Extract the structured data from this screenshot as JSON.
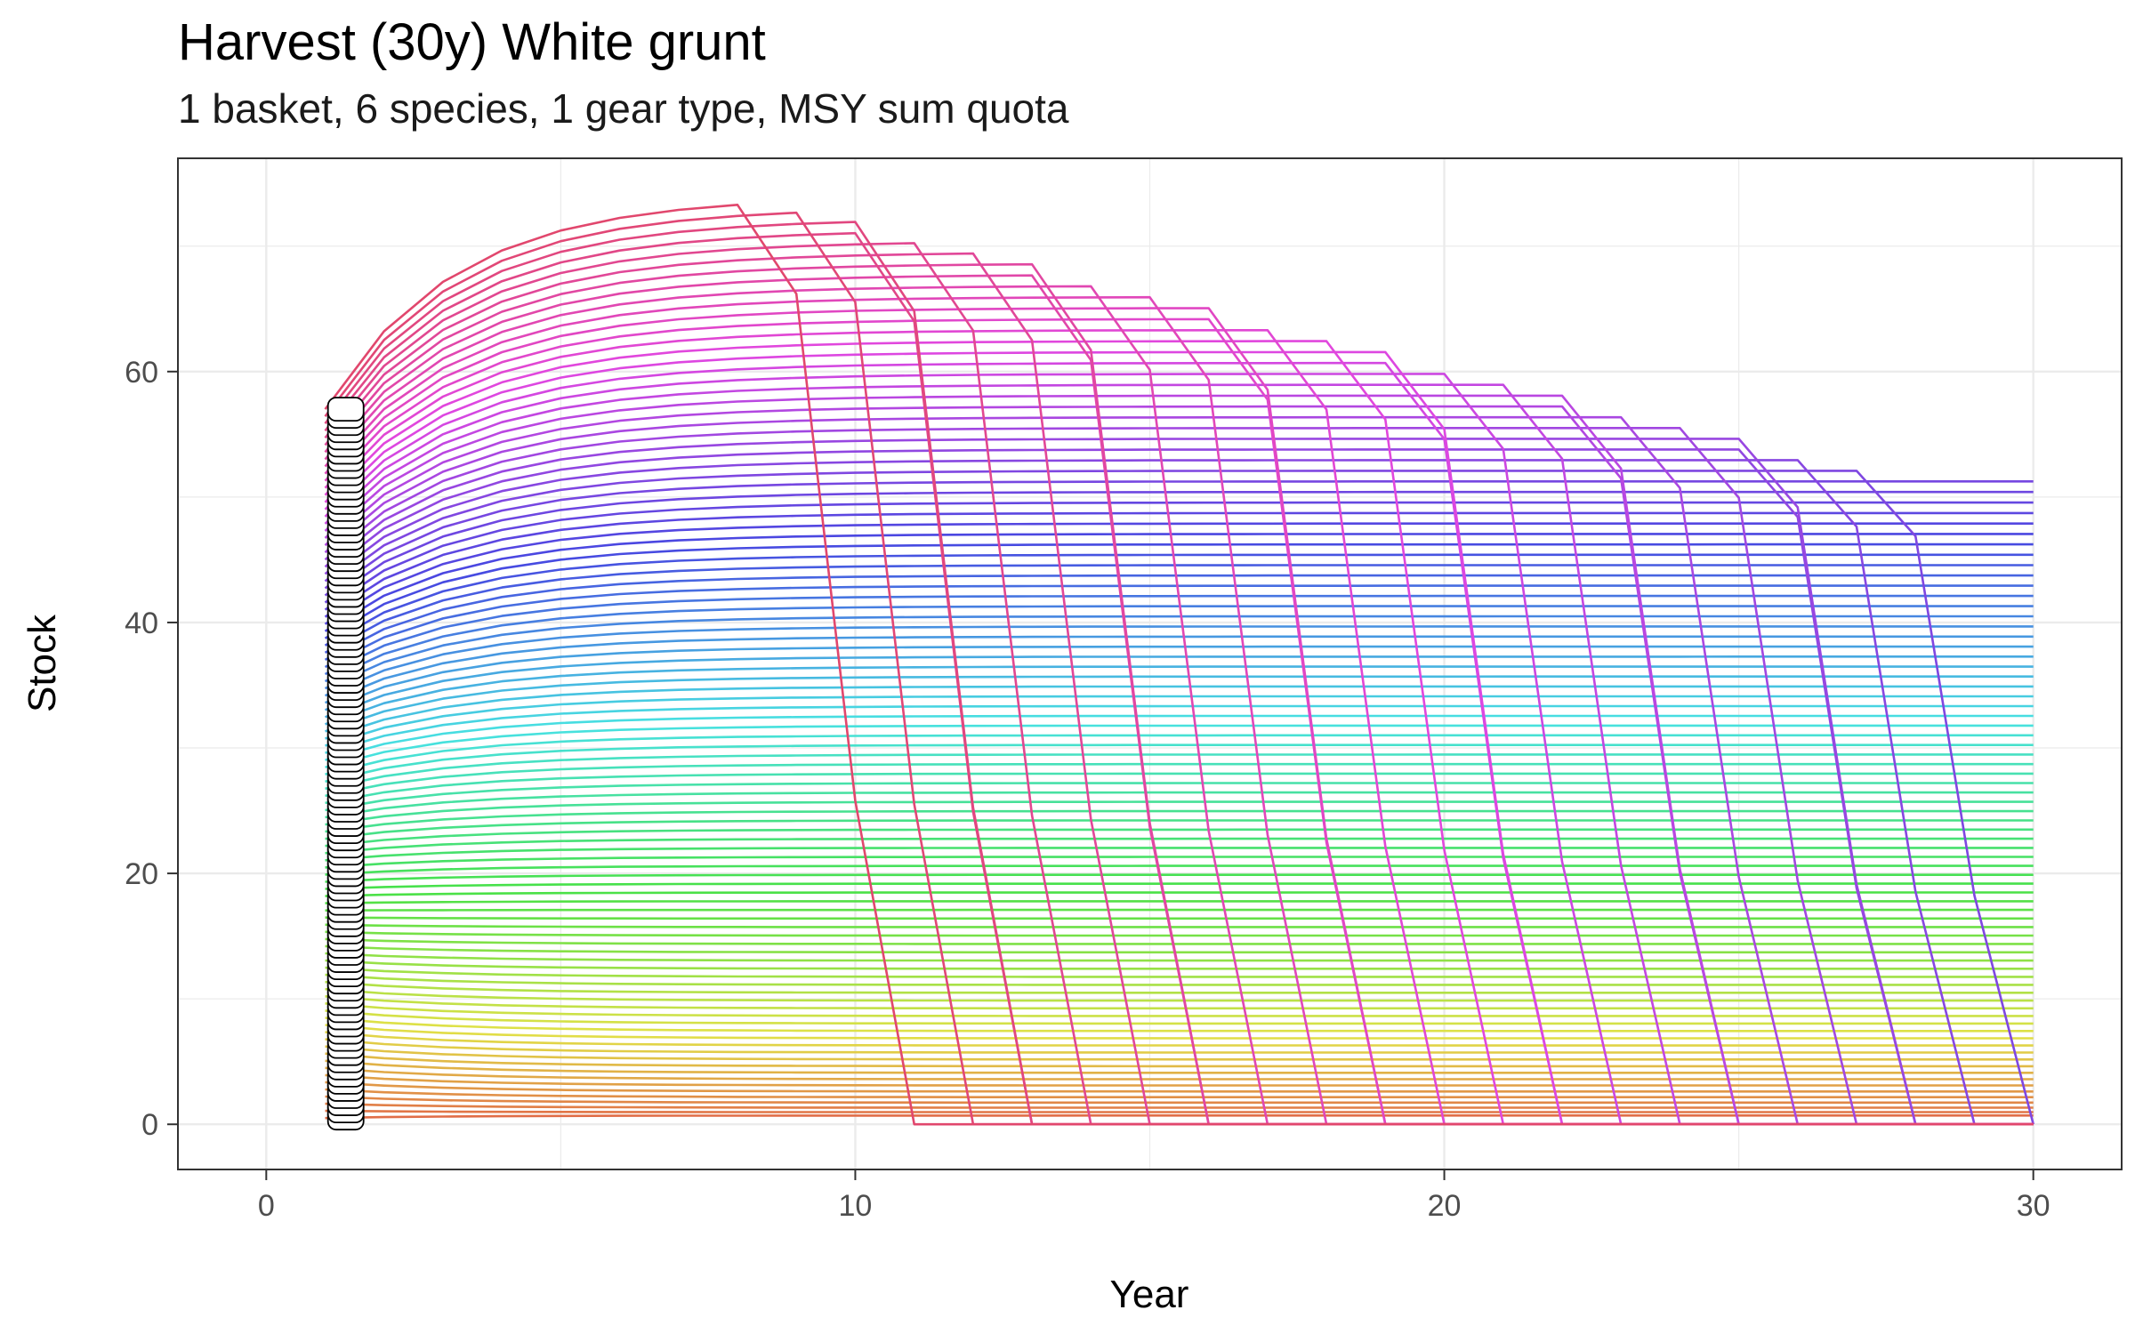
{
  "chart_data": {
    "type": "line",
    "title": "Harvest (30y) White grunt",
    "subtitle": "1 basket, 6 species, 1 gear type, MSY sum quota",
    "xlabel": "Year",
    "ylabel": "Stock",
    "xlim": [
      -1.5,
      31.5
    ],
    "ylim": [
      -3.6,
      77
    ],
    "x_ticks": [
      0,
      10,
      20,
      30
    ],
    "y_ticks": [
      0,
      20,
      40,
      60
    ],
    "grid": true,
    "legend": "none",
    "x": [
      1,
      2,
      3,
      4,
      5,
      6,
      7,
      8,
      9,
      10,
      11,
      12,
      13,
      14,
      15,
      16,
      17,
      18,
      19,
      20,
      21,
      22,
      23,
      24,
      25,
      26,
      27,
      28,
      29,
      30
    ],
    "series_count": 100,
    "series_description": "100 harvest scenarios; stock starts between ~0.5 and ~57 at year 1; lower scenarios plateau, upper scenarios (maxima near 74) collapse to 0 in successive later years",
    "series_samples": [
      {
        "name": "",
        "values_start": 0.5,
        "plateau": 0.7
      },
      {
        "name": "",
        "values_start": 20,
        "plateau": 22
      },
      {
        "name": "",
        "values_start": 40,
        "plateau": 47
      },
      {
        "name": "",
        "values_start": 57,
        "peak": 74,
        "collapse_year": 11
      }
    ]
  }
}
